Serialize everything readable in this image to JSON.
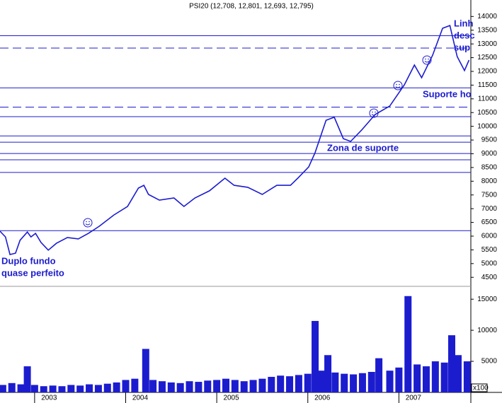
{
  "chart_data": {
    "type": "line",
    "title": "PSI20 (12,708, 12,801, 12,693, 12,795)",
    "color": "#1c1ccf",
    "x": [
      2002.62,
      2002.68,
      2002.73,
      2002.79,
      2002.84,
      2002.92,
      2002.96,
      2003.01,
      2003.07,
      2003.15,
      2003.24,
      2003.36,
      2003.48,
      2003.59,
      2003.71,
      2003.87,
      2004.02,
      2004.14,
      2004.2,
      2004.25,
      2004.37,
      2004.53,
      2004.64,
      2004.76,
      2004.92,
      2005.09,
      2005.19,
      2005.34,
      2005.5,
      2005.66,
      2005.81,
      2005.89,
      2006.01,
      2006.08,
      2006.2,
      2006.29,
      2006.39,
      2006.47,
      2006.59,
      2006.74,
      2006.9,
      2007.06,
      2007.17,
      2007.25,
      2007.37,
      2007.48,
      2007.56,
      2007.64,
      2007.72,
      2007.77
    ],
    "values": [
      6180,
      5970,
      5330,
      5380,
      5850,
      6150,
      5970,
      6100,
      5770,
      5490,
      5740,
      5950,
      5900,
      6100,
      6360,
      6770,
      7080,
      7750,
      7850,
      7520,
      7310,
      7390,
      7080,
      7390,
      7650,
      8110,
      7850,
      7780,
      7520,
      7850,
      7850,
      8110,
      8520,
      9040,
      10220,
      10330,
      9550,
      9450,
      9860,
      10430,
      10740,
      11510,
      12230,
      11770,
      12590,
      13570,
      13670,
      12540,
      12030,
      12410
    ],
    "xlim": [
      2002.62,
      2007.79
    ],
    "xticks": [
      2003,
      2004,
      2005,
      2006,
      2007
    ],
    "ylim": [
      4300,
      14600
    ],
    "yticks": [
      4500,
      5000,
      5500,
      6000,
      6500,
      7000,
      7500,
      8000,
      8500,
      9000,
      9500,
      10000,
      10500,
      11000,
      11500,
      12000,
      12500,
      13000,
      13500,
      14000
    ],
    "hlines": [
      {
        "value": 13300,
        "style": "solid"
      },
      {
        "value": 12850,
        "style": "dashed"
      },
      {
        "value": 11400,
        "style": "solid"
      },
      {
        "value": 10700,
        "style": "dashed"
      },
      {
        "value": 10350,
        "style": "solid"
      },
      {
        "value": 9650,
        "style": "solid"
      },
      {
        "value": 9420,
        "style": "solid"
      },
      {
        "value": 9010,
        "style": "solid"
      },
      {
        "value": 8780,
        "style": "solid"
      },
      {
        "value": 8320,
        "style": "solid"
      },
      {
        "value": 6200,
        "style": "solid"
      }
    ],
    "annotations": [
      "Duplo fundo",
      "quase perfeito",
      "Zona de suporte",
      "Suporte ho",
      "Linh",
      "desc",
      "sup"
    ],
    "volume": {
      "unit_label": "x100",
      "x": [
        2002.65,
        2002.75,
        2002.85,
        2002.92,
        2003.0,
        2003.1,
        2003.2,
        2003.3,
        2003.4,
        2003.5,
        2003.6,
        2003.7,
        2003.8,
        2003.9,
        2004.0,
        2004.1,
        2004.22,
        2004.3,
        2004.4,
        2004.5,
        2004.6,
        2004.7,
        2004.8,
        2004.9,
        2005.0,
        2005.1,
        2005.2,
        2005.3,
        2005.4,
        2005.5,
        2005.6,
        2005.7,
        2005.8,
        2005.9,
        2006.0,
        2006.08,
        2006.15,
        2006.22,
        2006.3,
        2006.4,
        2006.5,
        2006.6,
        2006.7,
        2006.78,
        2006.9,
        2007.0,
        2007.1,
        2007.2,
        2007.3,
        2007.4,
        2007.5,
        2007.58,
        2007.65,
        2007.75
      ],
      "values": [
        1200,
        1500,
        1300,
        4200,
        1200,
        1000,
        1100,
        1000,
        1200,
        1100,
        1300,
        1200,
        1400,
        1600,
        2000,
        2200,
        7000,
        2000,
        1800,
        1600,
        1500,
        1800,
        1700,
        1900,
        2000,
        2200,
        2000,
        1800,
        2000,
        2200,
        2500,
        2700,
        2600,
        2800,
        3000,
        11500,
        3500,
        6000,
        3200,
        3000,
        2900,
        3100,
        3300,
        5500,
        3500,
        4000,
        15500,
        4500,
        4200,
        5000,
        4800,
        9200,
        6000,
        5000
      ],
      "ylim": [
        0,
        16500
      ],
      "yticks": [
        5000,
        10000,
        15000
      ]
    }
  }
}
